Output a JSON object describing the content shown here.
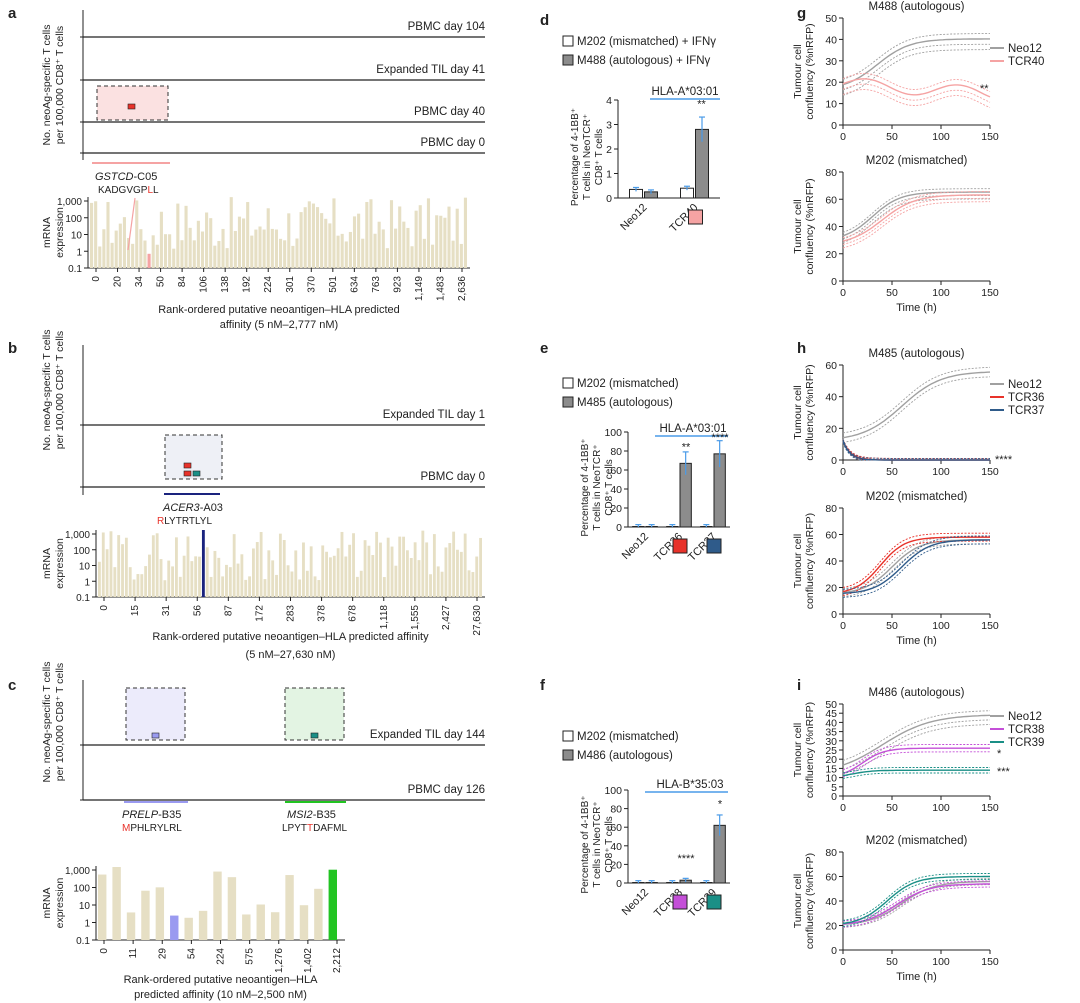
{
  "panel_letters": [
    "a",
    "b",
    "c",
    "d",
    "e",
    "f",
    "g",
    "h",
    "i"
  ],
  "common": {
    "tcell_ylabel_1": "No. neoAg-specific T cells",
    "tcell_ylabel_2": "per 100,000 CD8⁺ T cells",
    "mrna_ylabel_1": "mRNA",
    "mrna_ylabel_2": "expression",
    "mrna_ticks": [
      "1,000",
      "100",
      "10",
      "1",
      "0.1"
    ],
    "pct_ylabel_1": "Percentage of 4-1BB⁺",
    "pct_ylabel_2": "T cells in NeoTCR⁺",
    "pct_ylabel_3": "CD8⁺ T cells",
    "conf_ylabel_1": "Tumour cell",
    "conf_ylabel_2": "confluency (%nRFP)",
    "time_label": "Time (h)"
  },
  "colors": {
    "bar_beige": "#e6dfc4",
    "red": "#e8322a",
    "navy": "#1a237e",
    "green": "#22c422",
    "lavender": "#9a9af0",
    "pink": "#f5a3a3",
    "grey": "#a0a0a0",
    "teal": "#1a8f86",
    "purple": "#c44fd8",
    "darkblue": "#2f5b8a",
    "blue_line": "#4a9be8"
  },
  "a": {
    "timepoints": [
      "PBMC day 104",
      "Expanded TIL day 41",
      "PBMC day 40",
      "PBMC day 0"
    ],
    "epitope_gene": "GSTCD",
    "epitope_hla": "-C05",
    "peptide_pre": "KADGVGP",
    "peptide_mut": "L",
    "peptide_post": "L",
    "xticks": [
      "0",
      "20",
      "34",
      "50",
      "84",
      "106",
      "138",
      "192",
      "224",
      "301",
      "370",
      "501",
      "634",
      "763",
      "923",
      "1,149",
      "1,483",
      "2,636"
    ],
    "xlabel_1": "Rank-ordered putative neoantigen–HLA predicted",
    "xlabel_2": "affinity (5 nM–2,777 nM)"
  },
  "b": {
    "timepoints": [
      "Expanded TIL day 1",
      "PBMC day 0"
    ],
    "epitope_gene": "ACER3",
    "epitope_hla": "-A03",
    "peptide_mut": "R",
    "peptide_post": "LYTRTLYL",
    "xticks": [
      "0",
      "15",
      "31",
      "56",
      "87",
      "172",
      "283",
      "378",
      "678",
      "1,118",
      "1,555",
      "2,427",
      "27,630"
    ],
    "xlabel_1": "Rank-ordered putative neoantigen–HLA predicted affinity",
    "xlabel_2": "(5 nM–27,630 nM)"
  },
  "c": {
    "timepoints": [
      "Expanded TIL day 144",
      "PBMC day 126"
    ],
    "epitope1_gene": "PRELP",
    "epitope1_hla": "-B35",
    "peptide1_mut": "M",
    "peptide1_post": "PHLRYLRL",
    "epitope2_gene": "MSI2",
    "epitope2_hla": "-B35",
    "peptide2_pre": "LPYT",
    "peptide2_mut": "T",
    "peptide2_post": "DAFML",
    "xticks": [
      "0",
      "11",
      "29",
      "54",
      "224",
      "575",
      "1,276",
      "1,402",
      "2,212"
    ],
    "xlabel_1": "Rank-ordered putative neoantigen–HLA",
    "xlabel_2": "predicted affinity (10 nM–2,500 nM)"
  },
  "chart_data": [
    {
      "id": "d",
      "type": "bar",
      "legend": [
        "M202 (mismatched) + IFNγ",
        "M488 (autologous) + IFNγ"
      ],
      "hla": "HLA-A*03:01",
      "categories": [
        "Neo12",
        "TCR40"
      ],
      "series": [
        {
          "name": "M202 (mismatched) + IFNγ",
          "values": [
            0.35,
            0.4
          ]
        },
        {
          "name": "M488 (autologous) + IFNγ",
          "values": [
            0.25,
            2.8
          ]
        }
      ],
      "ylim": [
        0,
        4
      ],
      "yticks": [
        "0",
        "1",
        "2",
        "3",
        "4"
      ],
      "significance": "**"
    },
    {
      "id": "e",
      "type": "bar",
      "legend": [
        "M202 (mismatched)",
        "M485 (autologous)"
      ],
      "hla": "HLA-A*03:01",
      "categories": [
        "Neo12",
        "TCR36",
        "TCR37"
      ],
      "series": [
        {
          "name": "M202 (mismatched)",
          "values": [
            0.5,
            0.5,
            0.5
          ]
        },
        {
          "name": "M485 (autologous)",
          "values": [
            0.5,
            67,
            77
          ]
        }
      ],
      "ylim": [
        0,
        100
      ],
      "yticks": [
        "0",
        "20",
        "40",
        "60",
        "80",
        "100"
      ],
      "significance": [
        "**",
        "****"
      ]
    },
    {
      "id": "f",
      "type": "bar",
      "legend": [
        "M202 (mismatched)",
        "M486 (autologous)"
      ],
      "hla": "HLA-B*35:03",
      "categories": [
        "Neo12",
        "TCR38",
        "TCR39"
      ],
      "series": [
        {
          "name": "M202 (mismatched)",
          "values": [
            0.5,
            0.5,
            0.5
          ]
        },
        {
          "name": "M486 (autologous)",
          "values": [
            0.5,
            3,
            62
          ]
        }
      ],
      "ylim": [
        0,
        100
      ],
      "yticks": [
        "0",
        "20",
        "40",
        "60",
        "80",
        "100"
      ],
      "significance": [
        "****",
        "*"
      ]
    },
    {
      "id": "g-top",
      "type": "line",
      "title": "M488 (autologous)",
      "legend": [
        "Neo12",
        "TCR40"
      ],
      "xlim": [
        0,
        150
      ],
      "ylim": [
        0,
        50
      ],
      "xticks": [
        "0",
        "50",
        "100",
        "150"
      ],
      "yticks": [
        "0",
        "10",
        "20",
        "30",
        "40",
        "50"
      ],
      "significance": "**"
    },
    {
      "id": "g-bottom",
      "type": "line",
      "title": "M202 (mismatched)",
      "xlim": [
        0,
        150
      ],
      "ylim": [
        0,
        80
      ],
      "xticks": [
        "0",
        "50",
        "100",
        "150"
      ],
      "yticks": [
        "0",
        "20",
        "40",
        "60",
        "80"
      ]
    },
    {
      "id": "h-top",
      "type": "line",
      "title": "M485 (autologous)",
      "legend": [
        "Neo12",
        "TCR36",
        "TCR37"
      ],
      "xlim": [
        0,
        150
      ],
      "ylim": [
        0,
        60
      ],
      "xticks": [
        "0",
        "50",
        "100",
        "150"
      ],
      "yticks": [
        "0",
        "20",
        "40",
        "60"
      ],
      "significance": "****"
    },
    {
      "id": "h-bottom",
      "type": "line",
      "title": "M202 (mismatched)",
      "xlim": [
        0,
        150
      ],
      "ylim": [
        0,
        80
      ],
      "xticks": [
        "0",
        "50",
        "100",
        "150"
      ],
      "yticks": [
        "0",
        "20",
        "40",
        "60",
        "80"
      ]
    },
    {
      "id": "i-top",
      "type": "line",
      "title": "M486 (autologous)",
      "legend": [
        "Neo12",
        "TCR38",
        "TCR39"
      ],
      "xlim": [
        0,
        150
      ],
      "ylim": [
        0,
        50
      ],
      "xticks": [
        "0",
        "50",
        "100",
        "150"
      ],
      "yticks": [
        "0",
        "5",
        "10",
        "15",
        "20",
        "25",
        "30",
        "35",
        "40",
        "45",
        "50"
      ],
      "significance": [
        "*",
        "***"
      ]
    },
    {
      "id": "i-bottom",
      "type": "line",
      "title": "M202 (mismatched)",
      "xlim": [
        0,
        150
      ],
      "ylim": [
        0,
        80
      ],
      "xticks": [
        "0",
        "50",
        "100",
        "150"
      ],
      "yticks": [
        "0",
        "20",
        "40",
        "60",
        "80"
      ]
    }
  ]
}
